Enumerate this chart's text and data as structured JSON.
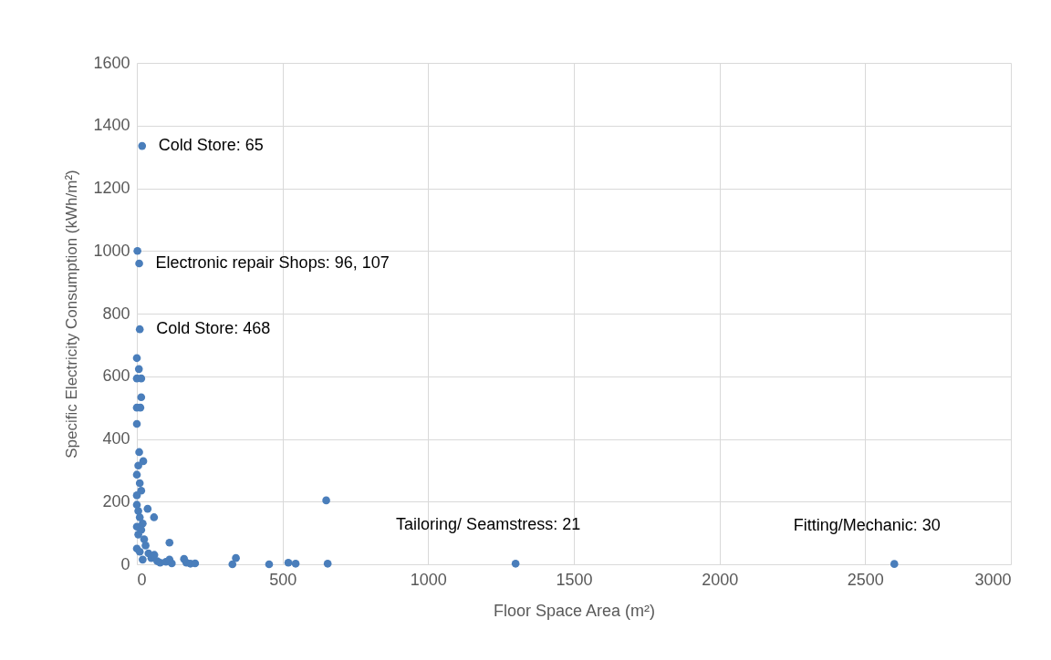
{
  "chart_data": {
    "type": "scatter",
    "xlabel": "Floor Space Area (m²)",
    "ylabel": "Specific Electricity Consumption  (kWh/m²)",
    "x": [
      18,
      2,
      8,
      10,
      0,
      7,
      0,
      15,
      15,
      0,
      12,
      0,
      8,
      22,
      5,
      0,
      10,
      15,
      0,
      650,
      59,
      37,
      112,
      0,
      5,
      10,
      20,
      0,
      15,
      5,
      25,
      30,
      0,
      10,
      40,
      50,
      20,
      60,
      70,
      80,
      100,
      112,
      120,
      162,
      170,
      184,
      200,
      340,
      328,
      454,
      520,
      545,
      655,
      1300,
      2600
    ],
    "series": [
      {
        "color": "#4a7ebb",
        "values": [
          1335,
          1000,
          960,
          750,
          658,
          623,
          593,
          593,
          533,
          500,
          500,
          448,
          358,
          329,
          315,
          286,
          259,
          235,
          220,
          204,
          150,
          177,
          69,
          190,
          170,
          150,
          130,
          120,
          110,
          95,
          80,
          60,
          50,
          40,
          35,
          20,
          15,
          30,
          10,
          5,
          8,
          15,
          3,
          17,
          5,
          2,
          3,
          20,
          0,
          0,
          5,
          2,
          2,
          2,
          1
        ]
      }
    ],
    "xlim": [
      0,
      3000
    ],
    "xticks": [
      0,
      500,
      1000,
      1500,
      2000,
      2500,
      3000
    ],
    "ylim": [
      0,
      1600
    ],
    "yticks": [
      0,
      200,
      400,
      600,
      800,
      1000,
      1200,
      1400,
      1600
    ],
    "grid": true,
    "marker": "circle",
    "annotations": [
      {
        "text": "Cold Store: 65",
        "x": 18,
        "y": 1335
      },
      {
        "text": "Electronic repair Shops: 96, 107",
        "x": 8,
        "y": 960
      },
      {
        "text": "Cold Store: 468",
        "x": 10,
        "y": 750
      },
      {
        "text": "Tailoring/ Seamstress: 21",
        "x": 1300,
        "y": 2
      },
      {
        "text": "Fitting/Mechanic: 30",
        "x": 2600,
        "y": 1
      }
    ]
  }
}
